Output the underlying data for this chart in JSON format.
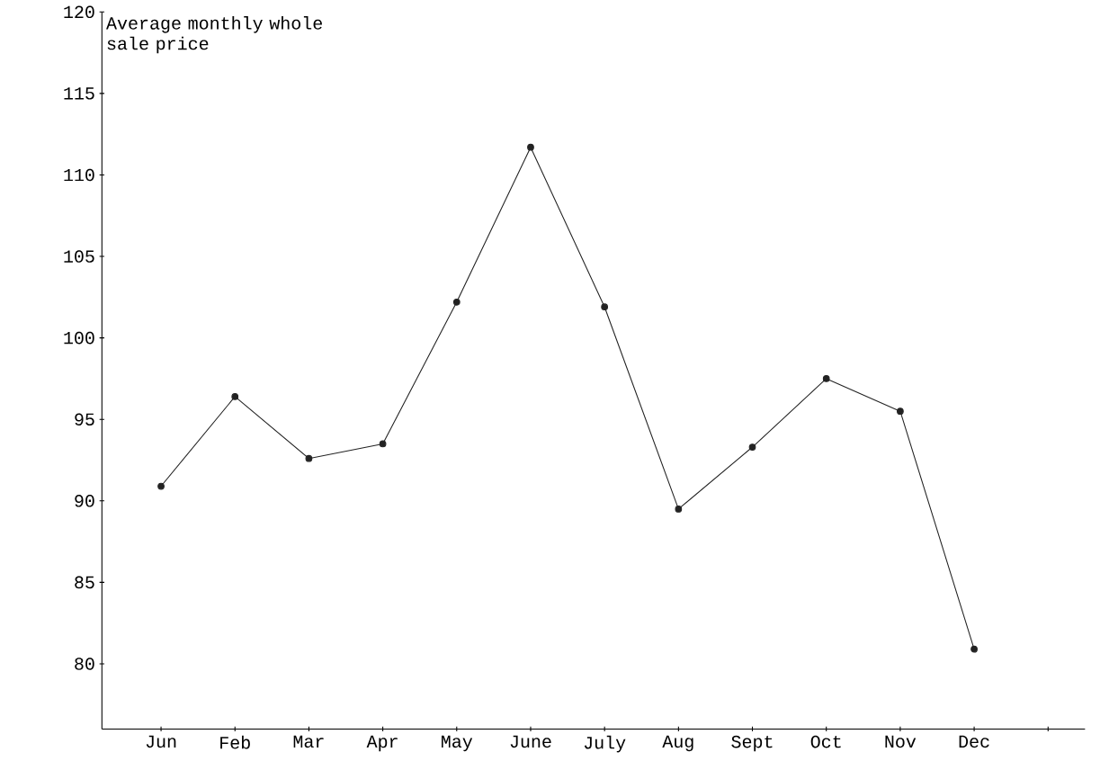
{
  "chart_data": {
    "type": "line",
    "ylabel": "Average monthly whole sale price",
    "categories": [
      "Jun",
      "Feb",
      "Mar",
      "Apr",
      "May",
      "June",
      "July",
      "Aug",
      "Sept",
      "Oct",
      "Nov",
      "Dec",
      null
    ],
    "values": [
      90.9,
      96.4,
      92.6,
      93.5,
      102.2,
      111.7,
      101.9,
      89.5,
      93.3,
      97.5,
      95.5,
      80.9,
      null
    ],
    "color": "#222222",
    "marker": "circle",
    "line_style": "solid",
    "grid": false,
    "legend": false,
    "ylim": [
      76,
      120
    ],
    "yticks": [
      80,
      85,
      90,
      95,
      100,
      105,
      110,
      115,
      120
    ]
  }
}
